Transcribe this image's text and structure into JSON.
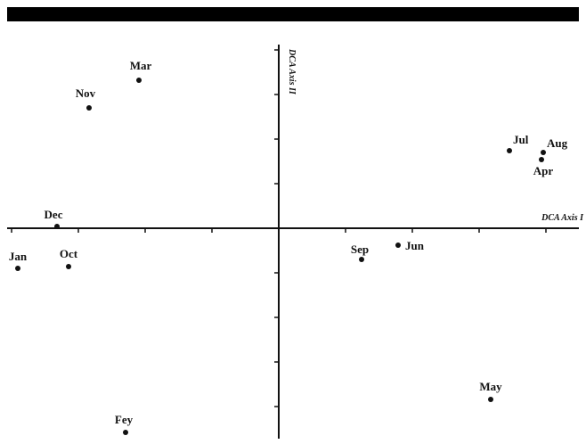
{
  "chart_data": {
    "type": "scatter",
    "xlabel": "DCA Axis I",
    "ylabel": "DCA Axis II",
    "grid": false,
    "points": [
      {
        "label": "Mar",
        "x": -157,
        "y": 166
      },
      {
        "label": "Nov",
        "x": -213,
        "y": 135
      },
      {
        "label": "Dec",
        "x": -249,
        "y": 2
      },
      {
        "label": "Jan",
        "x": -293,
        "y": -45
      },
      {
        "label": "Oct",
        "x": -236,
        "y": -43
      },
      {
        "label": "Fey",
        "x": -172,
        "y": -229
      },
      {
        "label": "Sep",
        "x": 93,
        "y": -35
      },
      {
        "label": "Jun",
        "x": 134,
        "y": -19
      },
      {
        "label": "Jul",
        "x": 259,
        "y": 87
      },
      {
        "label": "Aug",
        "x": 297,
        "y": 85
      },
      {
        "label": "Apr",
        "x": 295,
        "y": 77
      },
      {
        "label": "May",
        "x": 238,
        "y": -192
      }
    ]
  }
}
